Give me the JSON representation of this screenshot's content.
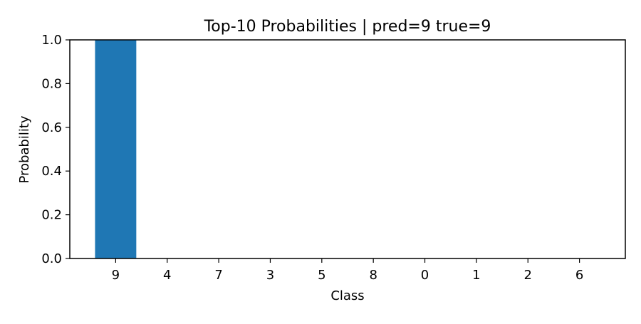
{
  "chart_data": {
    "type": "bar",
    "title": "Top-10 Probabilities | pred=9 true=9",
    "xlabel": "Class",
    "ylabel": "Probability",
    "categories": [
      "9",
      "4",
      "7",
      "3",
      "5",
      "8",
      "0",
      "1",
      "2",
      "6"
    ],
    "values": [
      1.0,
      0.0,
      0.0,
      0.0,
      0.0,
      0.0,
      0.0,
      0.0,
      0.0,
      0.0
    ],
    "ylim": [
      0,
      1.0
    ],
    "yticks": [
      "0.0",
      "0.2",
      "0.4",
      "0.6",
      "0.8",
      "1.0"
    ],
    "grid": false,
    "bar_color": "#1f77b4"
  }
}
